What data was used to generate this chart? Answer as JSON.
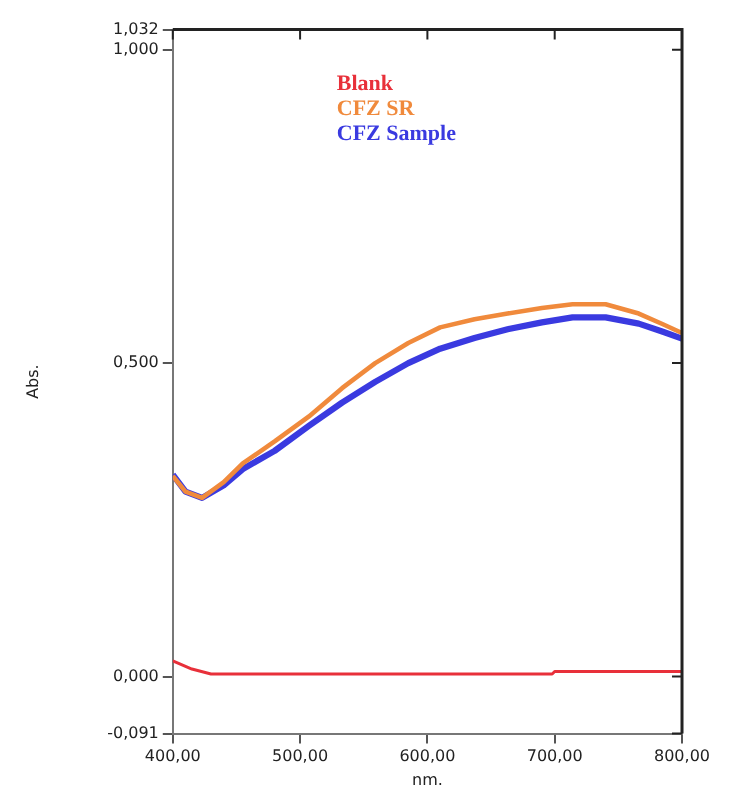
{
  "chart_data": {
    "type": "line",
    "xlabel": "nm.",
    "ylabel": "Abs.",
    "xlim": [
      400,
      800
    ],
    "xticks": [
      {
        "value": 400,
        "label": "400,00"
      },
      {
        "value": 500,
        "label": "500,00"
      },
      {
        "value": 600,
        "label": "600,00"
      },
      {
        "value": 700,
        "label": "700,00"
      },
      {
        "value": 800,
        "label": "800,00"
      }
    ],
    "ylim": [
      -0.091,
      1.032
    ],
    "yticks": [
      {
        "value": -0.091,
        "label": "-0,091"
      },
      {
        "value": 0,
        "label": "0,000"
      },
      {
        "value": 0.5,
        "label": "0,500"
      },
      {
        "value": 1,
        "label": "1,000"
      },
      {
        "value": 1.032,
        "label": "1,032"
      }
    ],
    "grid": false,
    "legend": "top",
    "marker": "none",
    "line_style": "solid",
    "series": [
      {
        "name": "Blank",
        "color": "#e8303a",
        "x": [
          400,
          415,
          430,
          460,
          500,
          600,
          698,
          700,
          750,
          800
        ],
        "values": [
          0.025,
          0.012,
          0.004,
          0.004,
          0.004,
          0.004,
          0.004,
          0.008,
          0.008,
          0.008
        ]
      },
      {
        "name": "CFZ SR",
        "color": "#f08a3c",
        "x": [
          400,
          410,
          423,
          440,
          455,
          480,
          507,
          533,
          559,
          585,
          610,
          637,
          663,
          690,
          714,
          740,
          766,
          785,
          800
        ],
        "values": [
          0.32,
          0.295,
          0.285,
          0.31,
          0.34,
          0.375,
          0.415,
          0.46,
          0.5,
          0.532,
          0.557,
          0.57,
          0.579,
          0.588,
          0.594,
          0.594,
          0.579,
          0.562,
          0.548
        ]
      },
      {
        "name": "CFZ Sample",
        "color": "#3a3ae0",
        "x": [
          400,
          410,
          423,
          440,
          455,
          480,
          507,
          533,
          559,
          585,
          610,
          637,
          663,
          690,
          714,
          740,
          766,
          785,
          800
        ],
        "values": [
          0.322,
          0.295,
          0.285,
          0.305,
          0.331,
          0.36,
          0.4,
          0.437,
          0.47,
          0.5,
          0.523,
          0.54,
          0.554,
          0.565,
          0.573,
          0.573,
          0.563,
          0.55,
          0.539
        ]
      }
    ]
  }
}
